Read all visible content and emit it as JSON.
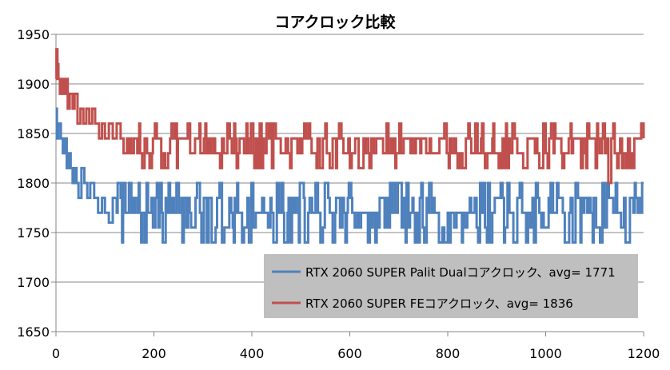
{
  "chart_data": {
    "type": "line",
    "title": "コアクロック比較",
    "xlabel": "",
    "ylabel": "",
    "xlim": [
      0,
      1200
    ],
    "ylim": [
      1650,
      1950
    ],
    "xticks": [
      0,
      200,
      400,
      600,
      800,
      1000,
      1200
    ],
    "yticks": [
      1650,
      1700,
      1750,
      1800,
      1850,
      1900,
      1950
    ],
    "grid": "horizontal",
    "legend_position": "bottom-right",
    "series": [
      {
        "name": "RTX 2060 SUPER Palit Dualコアクロック、avg= 1771",
        "color": "#4F81BD",
        "generator": "levels",
        "initial": [
          [
            0,
            1875
          ],
          [
            2,
            1845
          ],
          [
            5,
            1860
          ],
          [
            10,
            1845
          ],
          [
            14,
            1830
          ],
          [
            18,
            1845
          ],
          [
            22,
            1815
          ],
          [
            26,
            1830
          ],
          [
            30,
            1815
          ],
          [
            34,
            1800
          ],
          [
            38,
            1815
          ],
          [
            42,
            1800
          ],
          [
            46,
            1785
          ],
          [
            52,
            1815
          ],
          [
            58,
            1800
          ],
          [
            64,
            1785
          ],
          [
            70,
            1800
          ],
          [
            78,
            1785
          ],
          [
            86,
            1770
          ],
          [
            94,
            1785
          ],
          [
            100,
            1770
          ],
          [
            108,
            1760
          ],
          [
            116,
            1785
          ],
          [
            124,
            1770
          ]
        ],
        "steady_levels": [
          1740,
          1755,
          1770,
          1770,
          1770,
          1785,
          1785,
          1800
        ],
        "dips": [
          [
            220,
            1740
          ],
          [
            298,
            1740
          ],
          [
            320,
            1740
          ],
          [
            395,
            1740
          ],
          [
            447,
            1740
          ],
          [
            468,
            1740
          ],
          [
            510,
            1740
          ],
          [
            565,
            1740
          ],
          [
            637,
            1740
          ],
          [
            650,
            1740
          ],
          [
            733,
            1740
          ],
          [
            782,
            1740
          ],
          [
            793,
            1740
          ]
        ],
        "peaks": [
          [
            150,
            1800
          ],
          [
            290,
            1800
          ],
          [
            400,
            1800
          ],
          [
            460,
            1800
          ],
          [
            500,
            1800
          ],
          [
            550,
            1800
          ],
          [
            600,
            1800
          ],
          [
            690,
            1800
          ],
          [
            700,
            1800
          ],
          [
            1060,
            1800
          ],
          [
            1115,
            1800
          ],
          [
            1125,
            1800
          ],
          [
            1198,
            1800
          ]
        ],
        "seed": 7,
        "end": [
          [
            1190,
            1785
          ],
          [
            1195,
            1770
          ],
          [
            1197,
            1800
          ],
          [
            1200,
            1800
          ]
        ]
      },
      {
        "name": "RTX 2060 SUPER FEコアクロック、avg= 1836",
        "color": "#C0504D",
        "generator": "levels",
        "initial": [
          [
            0,
            1905
          ],
          [
            1,
            1935
          ],
          [
            3,
            1920
          ],
          [
            5,
            1905
          ],
          [
            8,
            1890
          ],
          [
            12,
            1905
          ],
          [
            16,
            1890
          ],
          [
            20,
            1905
          ],
          [
            24,
            1875
          ],
          [
            28,
            1890
          ],
          [
            34,
            1875
          ],
          [
            38,
            1890
          ],
          [
            44,
            1860
          ],
          [
            50,
            1875
          ],
          [
            56,
            1860
          ],
          [
            62,
            1875
          ],
          [
            68,
            1860
          ],
          [
            74,
            1875
          ],
          [
            80,
            1860
          ],
          [
            88,
            1845
          ],
          [
            94,
            1860
          ],
          [
            100,
            1845
          ],
          [
            108,
            1860
          ],
          [
            116,
            1845
          ],
          [
            124,
            1860
          ],
          [
            132,
            1845
          ]
        ],
        "steady_levels": [
          1815,
          1830,
          1830,
          1845,
          1845,
          1845,
          1860
        ],
        "dips": [
          [
            1128,
            1800
          ]
        ],
        "peaks": [],
        "seed": 13,
        "end": [
          [
            1190,
            1845
          ],
          [
            1195,
            1860
          ],
          [
            1200,
            1845
          ]
        ]
      }
    ]
  }
}
